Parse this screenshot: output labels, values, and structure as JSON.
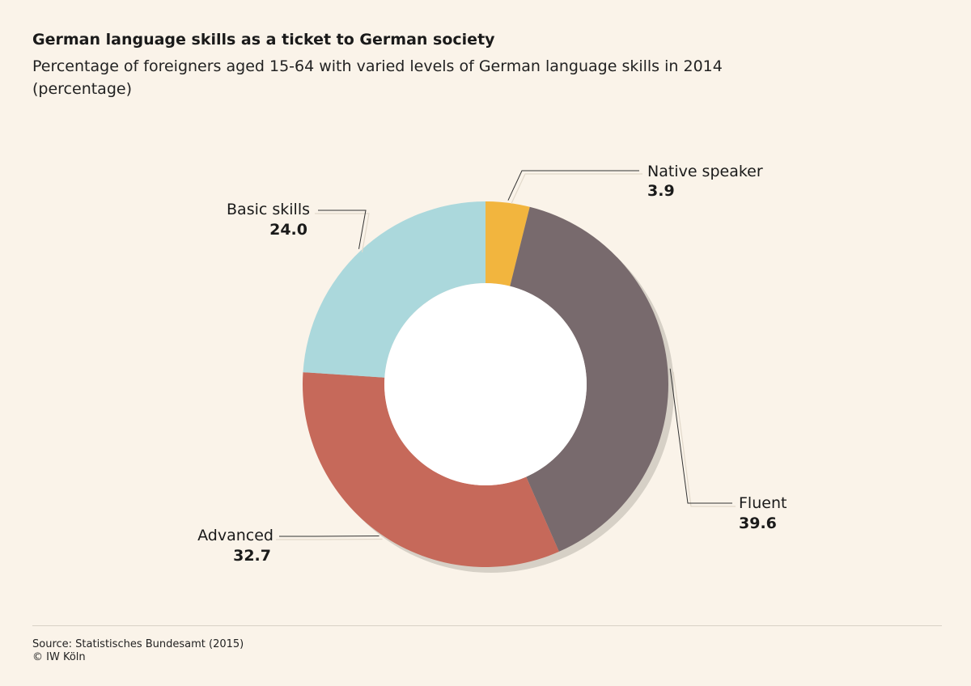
{
  "title": "German language skills as a ticket to German society",
  "subtitle": "Percentage of foreigners aged 15-64 with varied levels of German language skills in 2014 (percentage)",
  "footer": {
    "source": "Source: Statistisches Bundesamt (2015)",
    "copyright": "© IW Köln"
  },
  "chart_data": {
    "type": "pie",
    "donut": true,
    "labels": [
      "Native speaker",
      "Fluent",
      "Advanced",
      "Basic skills"
    ],
    "values": [
      3.9,
      39.6,
      32.7,
      24.0
    ],
    "value_labels": [
      "3.9",
      "39.6",
      "32.7",
      "24.0"
    ],
    "colors": [
      "#f2b53e",
      "#786a6d",
      "#c6695a",
      "#abd8dc"
    ],
    "start": "12 o'clock",
    "direction": "clockwise"
  }
}
